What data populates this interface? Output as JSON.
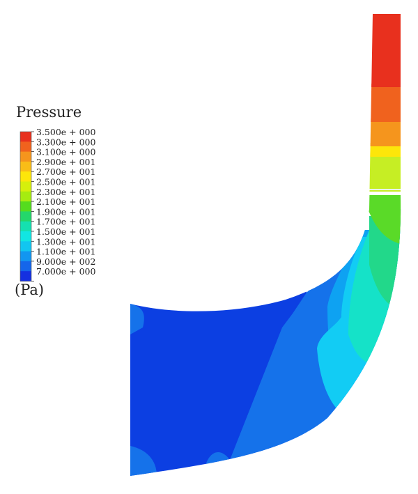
{
  "legend": {
    "title": "Pressure",
    "unit": "(Pa)",
    "labels": [
      "3.500e + 000",
      "3.300e + 000",
      "3.100e + 000",
      "2.900e + 001",
      "2.700e + 001",
      "2.500e + 001",
      "2.300e + 001",
      "2.100e + 001",
      "1.900e + 001",
      "1.700e + 001",
      "1.500e + 001",
      "1.300e + 001",
      "1.100e + 001",
      "9.000e + 002",
      "7.000e + 000"
    ],
    "colors": [
      "#e8301e",
      "#f0621e",
      "#f5951d",
      "#f9bd17",
      "#fde60a",
      "#d6ef0c",
      "#a6ec10",
      "#55dc1e",
      "#24d76a",
      "#15e0b0",
      "#12e6e2",
      "#12c6f0",
      "#1296f0",
      "#1566ea",
      "#1530e0"
    ]
  },
  "contour_colors": {
    "red": "#e8301e",
    "orange_red": "#f0621e",
    "orange": "#f5951d",
    "yellow": "#fde60a",
    "yellow_green": "#c6ee24",
    "green": "#5ada28",
    "green_cyan": "#22d88a",
    "cyan": "#15e2c8",
    "light_blue": "#12ccf4",
    "sky_blue": "#0ea2f2",
    "mid_blue": "#1572ea",
    "deep_blue": "#0c3fe2"
  }
}
